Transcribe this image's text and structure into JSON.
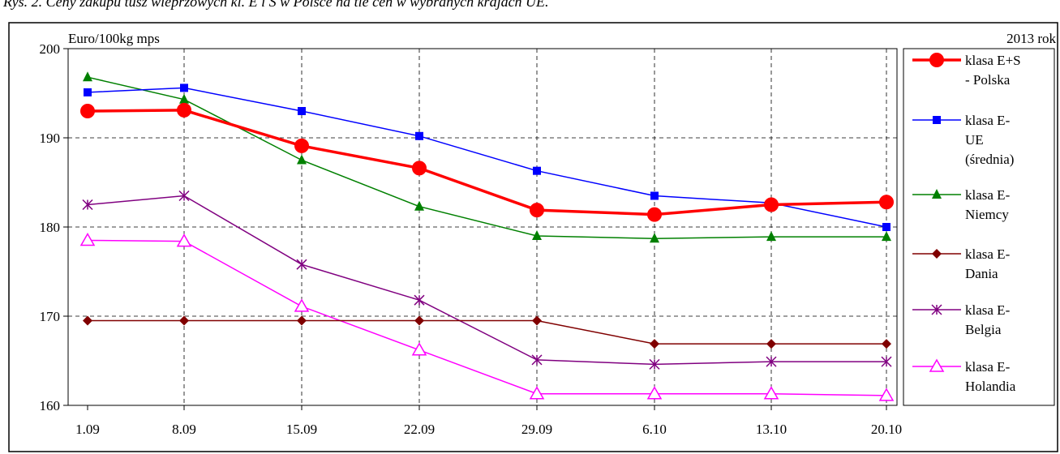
{
  "caption": "Rys. 2. Ceny zakupu tusz wieprzowych kl. E i S w Polsce na tle cen w wybranych krajach UE.",
  "chart_data": {
    "type": "line",
    "title": "",
    "ylabel": "Euro/100kg mps",
    "corner_label": "2013 rok",
    "xlabel": "",
    "x": [
      "1.09",
      "8.09",
      "15.09",
      "22.09",
      "29.09",
      "6.10",
      "13.10",
      "20.10"
    ],
    "ylim": [
      160,
      200
    ],
    "yticks": [
      160,
      170,
      180,
      190,
      200
    ],
    "grid": true,
    "legend_position": "right",
    "series": [
      {
        "name_lines": [
          "klasa E+S",
          "- Polska"
        ],
        "color": "#ff0000",
        "marker": "circle",
        "values": [
          193.0,
          193.1,
          189.1,
          186.6,
          181.9,
          181.4,
          182.5,
          182.8
        ]
      },
      {
        "name_lines": [
          "klasa E-",
          "UE",
          "(średnia)"
        ],
        "color": "#0000ff",
        "marker": "square",
        "values": [
          195.1,
          195.6,
          193.0,
          190.2,
          186.3,
          183.5,
          182.7,
          180.0
        ]
      },
      {
        "name_lines": [
          "klasa E-",
          "Niemcy"
        ],
        "color": "#008000",
        "marker": "triangle",
        "values": [
          196.8,
          194.3,
          187.5,
          182.3,
          179.0,
          178.7,
          178.9,
          178.9
        ]
      },
      {
        "name_lines": [
          "klasa E-",
          "Dania"
        ],
        "color": "#800000",
        "marker": "diamond",
        "values": [
          169.5,
          169.5,
          169.5,
          169.5,
          169.5,
          166.9,
          166.9,
          166.9
        ]
      },
      {
        "name_lines": [
          "klasa E-",
          "Belgia"
        ],
        "color": "#800080",
        "marker": "star",
        "values": [
          182.5,
          183.5,
          175.8,
          171.8,
          165.1,
          164.6,
          164.9,
          164.9
        ]
      },
      {
        "name_lines": [
          "klasa E-",
          "Holandia"
        ],
        "color": "#ff00ff",
        "marker": "open-triangle",
        "values": [
          178.5,
          178.4,
          171.1,
          166.2,
          161.3,
          161.3,
          161.3,
          161.1
        ]
      }
    ]
  }
}
